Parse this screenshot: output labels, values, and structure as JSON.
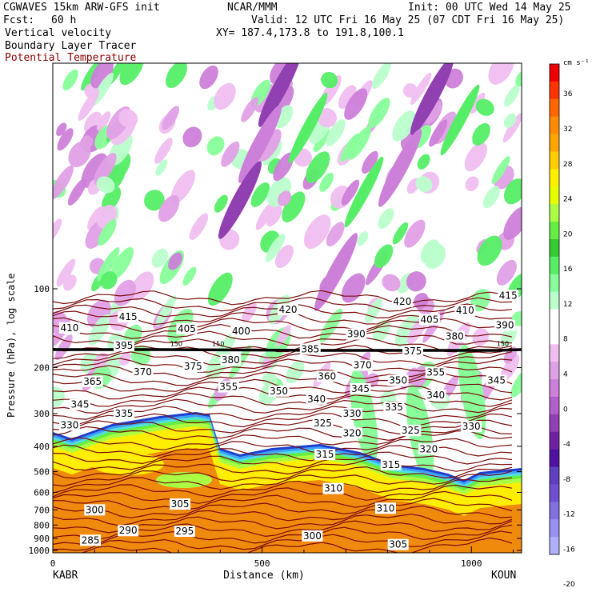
{
  "header": {
    "title_left": "CGWAVES 15km ARW-GFS init",
    "source": "NCAR/MMM",
    "init": "Init: 00 UTC Wed 14 May 25",
    "fcst_label": "Fcst:",
    "fcst_value": "60 h",
    "valid": "Valid: 12 UTC Fri 16 May 25 (07 CDT Fri 16 May 25)",
    "field1": "Vertical velocity",
    "xy": "XY= 187.4,173.8 to 191.8,100.1",
    "field2": "Boundary Layer Tracer",
    "field3": "Potential Temperature"
  },
  "colors": {
    "theta": "#7a0a0a",
    "tropopause": "#000000",
    "boundary_layer": "#f08a0c"
  },
  "chart_data": {
    "type": "contour-cross-section",
    "ylabel": "Pressure (hPa), log scale",
    "xlabel": "Distance (km)",
    "x_ticks": [
      "0",
      "500",
      "1000"
    ],
    "y_ticks": [
      "100",
      "200",
      "300",
      "400",
      "500",
      "600",
      "700",
      "800",
      "900",
      "1000"
    ],
    "xlim": [
      0,
      1120
    ],
    "y_log": true,
    "left_station": "KABR",
    "right_station": "KOUN",
    "colorbar": {
      "unit": "cm s⁻¹",
      "labels": [
        "36",
        "32",
        "28",
        "24",
        "20",
        "16",
        "12",
        "8",
        "4",
        "0",
        "-4",
        "-8",
        "-12",
        "-16",
        "-20"
      ],
      "colors": [
        "#ee0000",
        "#ff3300",
        "#ff6600",
        "#ff8c00",
        "#ffa500",
        "#ffcc00",
        "#ffee00",
        "#e6ff00",
        "#aaff44",
        "#66ee44",
        "#33cc33",
        "#55ee66",
        "#88ff99",
        "#bbffcc",
        "#ffffff",
        "#ffffff",
        "#f0bff0",
        "#e0a0e6",
        "#cc80d9",
        "#b060c8",
        "#9040b0",
        "#7020a0",
        "#5010a0",
        "#6040c0",
        "#7050d0",
        "#8070e0",
        "#9a90f0",
        "#b0b0ff"
      ]
    },
    "theta_labels": [
      {
        "v": "420",
        "x": 562,
        "p": 120
      },
      {
        "v": "420",
        "x": 835,
        "p": 112
      },
      {
        "v": "415",
        "x": 180,
        "p": 128
      },
      {
        "v": "415",
        "x": 1088,
        "p": 106
      },
      {
        "v": "410",
        "x": 40,
        "p": 141
      },
      {
        "v": "410",
        "x": 985,
        "p": 121
      },
      {
        "v": "405",
        "x": 320,
        "p": 142
      },
      {
        "v": "405",
        "x": 900,
        "p": 131
      },
      {
        "v": "400",
        "x": 450,
        "p": 145
      },
      {
        "v": "395",
        "x": 170,
        "p": 165
      },
      {
        "v": "390",
        "x": 725,
        "p": 149
      },
      {
        "v": "390",
        "x": 1080,
        "p": 138
      },
      {
        "v": "385",
        "x": 615,
        "p": 170
      },
      {
        "v": "380",
        "x": 960,
        "p": 152
      },
      {
        "v": "380",
        "x": 425,
        "p": 187
      },
      {
        "v": "375",
        "x": 335,
        "p": 198
      },
      {
        "v": "375",
        "x": 860,
        "p": 173
      },
      {
        "v": "370",
        "x": 215,
        "p": 208
      },
      {
        "v": "370",
        "x": 740,
        "p": 196
      },
      {
        "v": "365",
        "x": 95,
        "p": 226
      },
      {
        "v": "360",
        "x": 655,
        "p": 216
      },
      {
        "v": "355",
        "x": 420,
        "p": 237
      },
      {
        "v": "355",
        "x": 915,
        "p": 209
      },
      {
        "v": "350",
        "x": 540,
        "p": 246
      },
      {
        "v": "350",
        "x": 825,
        "p": 224
      },
      {
        "v": "345",
        "x": 735,
        "p": 241
      },
      {
        "v": "345",
        "x": 1060,
        "p": 224
      },
      {
        "v": "345",
        "x": 65,
        "p": 277
      },
      {
        "v": "340",
        "x": 630,
        "p": 264
      },
      {
        "v": "340",
        "x": 915,
        "p": 255
      },
      {
        "v": "335",
        "x": 170,
        "p": 300
      },
      {
        "v": "335",
        "x": 815,
        "p": 284
      },
      {
        "v": "330",
        "x": 715,
        "p": 300
      },
      {
        "v": "330",
        "x": 1000,
        "p": 336
      },
      {
        "v": "330",
        "x": 40,
        "p": 332
      },
      {
        "v": "325",
        "x": 645,
        "p": 326
      },
      {
        "v": "325",
        "x": 855,
        "p": 348
      },
      {
        "v": "320",
        "x": 715,
        "p": 356
      },
      {
        "v": "320",
        "x": 898,
        "p": 410
      },
      {
        "v": "315",
        "x": 650,
        "p": 430
      },
      {
        "v": "315",
        "x": 808,
        "p": 470
      },
      {
        "v": "310",
        "x": 670,
        "p": 580
      },
      {
        "v": "310",
        "x": 795,
        "p": 690
      },
      {
        "v": "305",
        "x": 304,
        "p": 665
      },
      {
        "v": "305",
        "x": 825,
        "p": 950
      },
      {
        "v": "300",
        "x": 100,
        "p": 700
      },
      {
        "v": "300",
        "x": 620,
        "p": 880
      },
      {
        "v": "295",
        "x": 315,
        "p": 845
      },
      {
        "v": "290",
        "x": 180,
        "p": 840
      },
      {
        "v": "285",
        "x": 90,
        "p": 915
      }
    ],
    "tracer_labels": [
      {
        "v": "150",
        "x": 295,
        "p": 162
      },
      {
        "v": "150",
        "x": 395,
        "p": 162
      },
      {
        "v": "150",
        "x": 1075,
        "p": 162
      }
    ]
  }
}
